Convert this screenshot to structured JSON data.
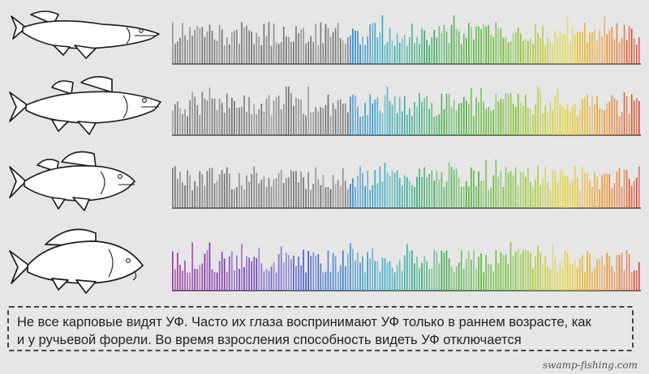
{
  "rows": [
    {
      "fish": "pike-illustration",
      "gradient": "uv-absent-until-cyan"
    },
    {
      "fish": "zander-illustration",
      "gradient": "uv-absent-until-cyan"
    },
    {
      "fish": "perch-illustration",
      "gradient": "uv-absent-until-cyan"
    },
    {
      "fish": "carp-illustration",
      "gradient": "uv-visible-full"
    }
  ],
  "caption": {
    "line1": "Не все карповые видят УФ. Часто их глаза воспринимают УФ только в раннем возрасте, как",
    "line2": "и у ручьевой форели. Во время взросления способность видеть УФ отключается"
  },
  "watermark": "swamp-fishing.com",
  "colors": {
    "background": "#e6e6e6",
    "gray": "#6e6e6e",
    "outline": "#1a1a1a"
  }
}
